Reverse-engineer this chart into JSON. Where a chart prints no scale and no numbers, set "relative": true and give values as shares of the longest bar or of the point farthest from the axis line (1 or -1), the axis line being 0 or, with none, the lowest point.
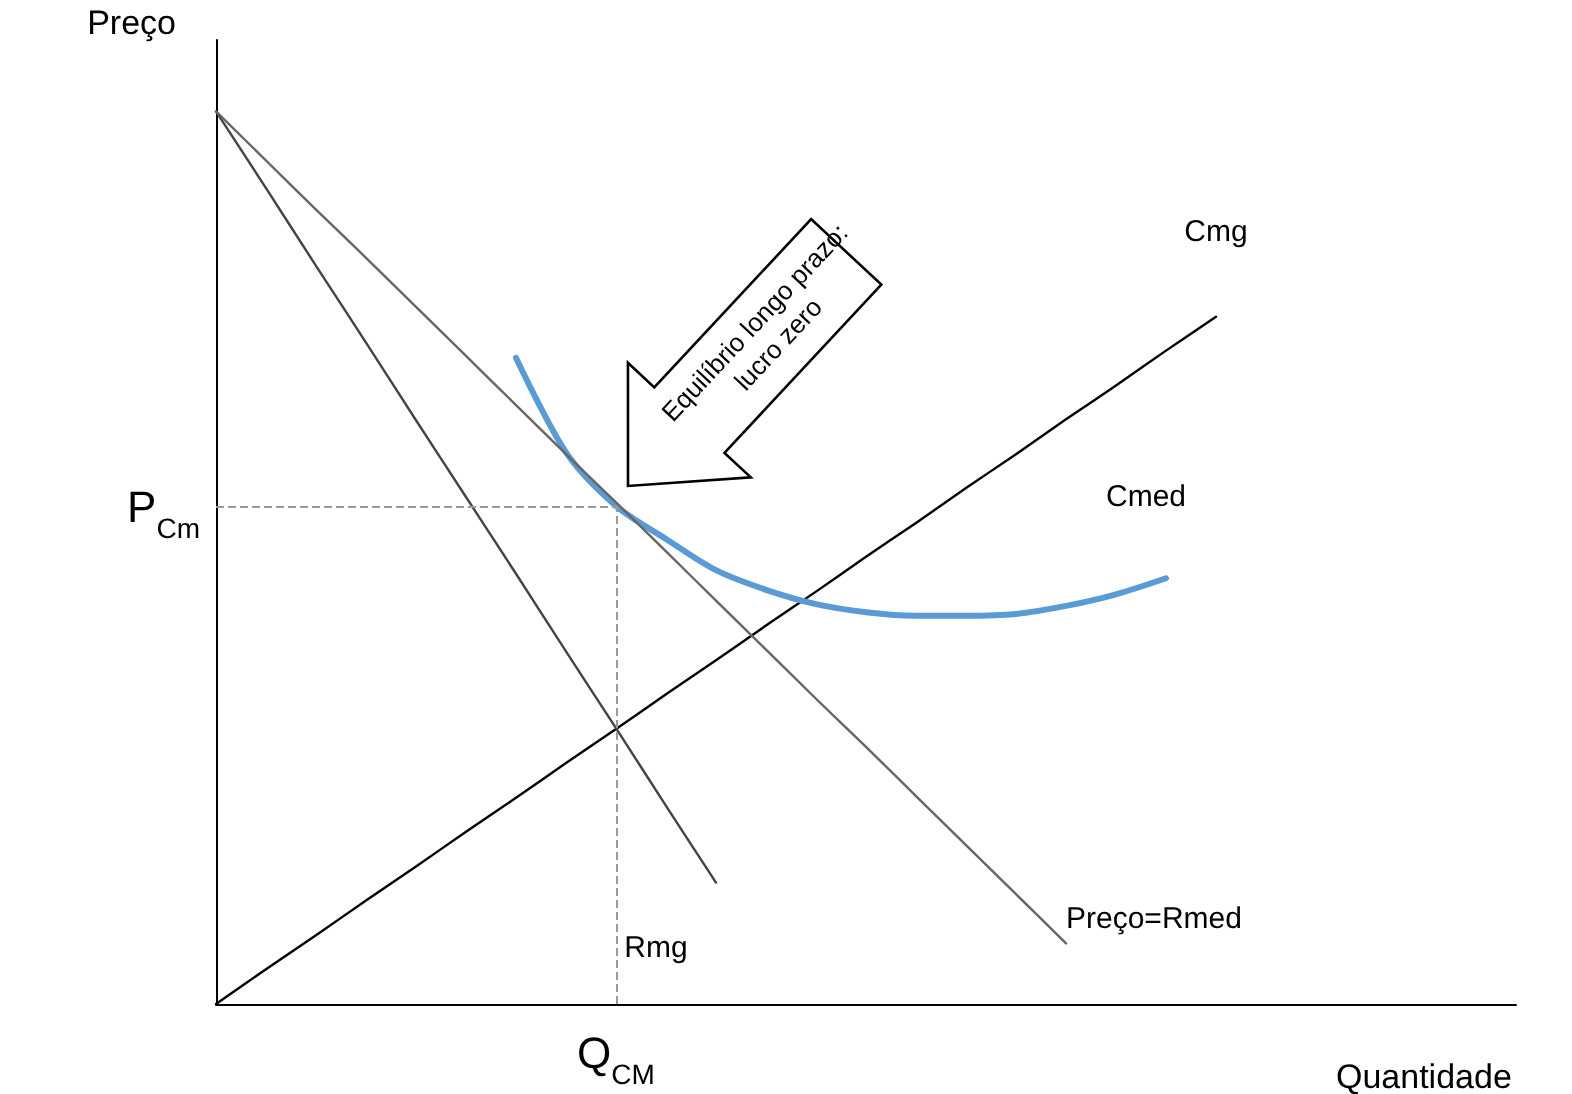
{
  "chart_data": {
    "type": "line",
    "relative": true,
    "ylabel": "Preço",
    "xlabel": "Quantidade",
    "marker": "none",
    "categories": [
      null,
      null,
      null,
      null,
      null,
      null,
      null,
      null,
      null,
      null,
      null,
      null,
      null,
      null,
      null,
      null,
      null,
      null,
      null,
      null,
      null,
      null,
      null,
      null,
      null,
      null,
      null
    ],
    "series": [
      {
        "name": "Cmg",
        "color": "#000000",
        "values": [
          0,
          0.039,
          0.077,
          0.116,
          0.154,
          0.193,
          0.231,
          0.27,
          0.308,
          0.347,
          0.385,
          0.424,
          0.462,
          0.501,
          0.539,
          0.578,
          0.616,
          0.655,
          0.693,
          0.732,
          0.77,
          null,
          null,
          null,
          null,
          null,
          null
        ]
      },
      {
        "name": "Cmed",
        "color": "#5b9bd5",
        "values": [
          null,
          null,
          null,
          null,
          null,
          null,
          0.724,
          0.618,
          0.558,
          0.521,
          0.486,
          0.464,
          0.448,
          0.439,
          0.435,
          0.435,
          0.437,
          0.446,
          0.459,
          0.477,
          null,
          null,
          null,
          null,
          null,
          null,
          null
        ]
      },
      {
        "name": "Rmg",
        "color": "#444444",
        "values": [
          1,
          0.914,
          0.827,
          0.741,
          0.654,
          0.568,
          0.482,
          0.395,
          0.309,
          0.222,
          0.136,
          null,
          null,
          null,
          null,
          null,
          null,
          null,
          null,
          null,
          null,
          null,
          null,
          null,
          null,
          null,
          null
        ]
      },
      {
        "name": "Preço=Rmed",
        "color": "#666666",
        "values": [
          1,
          0.945,
          0.89,
          0.836,
          0.781,
          0.726,
          0.671,
          0.616,
          0.562,
          0.507,
          0.452,
          0.397,
          0.342,
          0.288,
          0.233,
          0.178,
          0.123,
          0.068,
          null,
          null,
          null,
          null,
          null,
          null,
          null,
          null,
          null
        ]
      }
    ],
    "ref_lines": [
      {
        "axis": "y",
        "value": 0.558,
        "label": "P$_{Cm}$",
        "color": "#999999",
        "line_style": "dashed"
      }
    ],
    "annotations": [
      "Equilíbrio longo prazo: lucro zero",
      "Q$_{CM}$"
    ]
  }
}
